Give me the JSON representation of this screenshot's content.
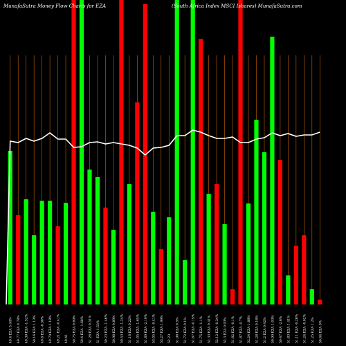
{
  "header": {
    "left": "MunafaSutra  Money Flow  Charts for EZA",
    "right": "(South Africa Index MSCI Ishares) MunafaSutra.com"
  },
  "chart_data": {
    "type": "bar",
    "title": "MunafaSutra  Money Flow  Charts for EZA",
    "subtitle": "(South Africa Index MSCI Ishares) MunafaSutra.com",
    "colors": {
      "up": "#00ff00",
      "down": "#ff0000",
      "line": "#ffffff",
      "grid": "#cc6600",
      "background": "#000000"
    },
    "ylim": [
      0,
      440
    ],
    "bars": [
      {
        "v": 222,
        "c": "up"
      },
      {
        "v": 129,
        "c": "down"
      },
      {
        "v": 152,
        "c": "up"
      },
      {
        "v": 100,
        "c": "up"
      },
      {
        "v": 150,
        "c": "up"
      },
      {
        "v": 150,
        "c": "up"
      },
      {
        "v": 113,
        "c": "down"
      },
      {
        "v": 147,
        "c": "up"
      },
      {
        "v": 440,
        "c": "down"
      },
      {
        "v": 440,
        "c": "up"
      },
      {
        "v": 195,
        "c": "up"
      },
      {
        "v": 184,
        "c": "up"
      },
      {
        "v": 140,
        "c": "down"
      },
      {
        "v": 108,
        "c": "up"
      },
      {
        "v": 440,
        "c": "down"
      },
      {
        "v": 174,
        "c": "up"
      },
      {
        "v": 292,
        "c": "down"
      },
      {
        "v": 434,
        "c": "down"
      },
      {
        "v": 134,
        "c": "up"
      },
      {
        "v": 80,
        "c": "down"
      },
      {
        "v": 126,
        "c": "up"
      },
      {
        "v": 440,
        "c": "up"
      },
      {
        "v": 64,
        "c": "up"
      },
      {
        "v": 440,
        "c": "up"
      },
      {
        "v": 384,
        "c": "down"
      },
      {
        "v": 160,
        "c": "up"
      },
      {
        "v": 174,
        "c": "down"
      },
      {
        "v": 116,
        "c": "up"
      },
      {
        "v": 22,
        "c": "down"
      },
      {
        "v": 440,
        "c": "down"
      },
      {
        "v": 146,
        "c": "up"
      },
      {
        "v": 267,
        "c": "up"
      },
      {
        "v": 220,
        "c": "up"
      },
      {
        "v": 387,
        "c": "up"
      },
      {
        "v": 209,
        "c": "down"
      },
      {
        "v": 42,
        "c": "up"
      },
      {
        "v": 85,
        "c": "down"
      },
      {
        "v": 100,
        "c": "down"
      },
      {
        "v": 22,
        "c": "up"
      },
      {
        "v": 7,
        "c": "down"
      }
    ],
    "line": [
      236,
      234,
      240,
      236,
      240,
      248,
      239,
      239,
      227,
      228,
      234,
      235,
      232,
      234,
      232,
      230,
      226,
      216,
      226,
      227,
      230,
      244,
      244,
      252,
      249,
      244,
      240,
      240,
      242,
      234,
      234,
      239,
      241,
      248,
      244,
      247,
      243,
      245,
      245,
      249
    ],
    "xticks": [
      "49.4 EZA 5.44%",
      "49.77 EZA 0.78%",
      "49.39 EZA -1.52%",
      "50.16 EZA 1.13%",
      "49.6 EZA -0.38%",
      "49.79 EZA 1.18%",
      "49.21 EZA -0.41%",
      "49.41",
      "50.75 EZA 0.69%",
      "50.4 EZA -1.68%",
      "51.26 EZA 0.51%",
      "51 EZA 1.53%",
      "50.23 EZA -1.46%",
      "50.98 EZA 0.89%",
      "50.53 EZA -1.24%",
      "51.16 EZA 0.22%",
      "51.05 EZA -1.65%",
      "51.89 EZA -2.19%",
      "53.05 EZA -0.41%",
      "53.27 EZA 1.99%",
      "52.23",
      "51.98 EZA 0.5%",
      "51.72 EZA 0.1%",
      "51.67 EZA -0.15%",
      "51.75 EZA -1.1%",
      "52.33 EZA 0.41%",
      "52.12 EZA -0.34%",
      "52.3 EZA 0.93%",
      "51.82 EZA -0.1%",
      "51.87 EZA -0.7%",
      "52.24 EZA 1.88%",
      "51.28 EZA 0.16%",
      "51.2 EZA 0.42%",
      "50.99 EZA 1.03%",
      "50.47 EZA -2.6%",
      "51.83 EZA 1.41%",
      "51.11 EZA -0.26%",
      "51.24 EZA -0.02%",
      "51.25 EZA 1.2%",
      "50.64 EZA 0%"
    ]
  }
}
